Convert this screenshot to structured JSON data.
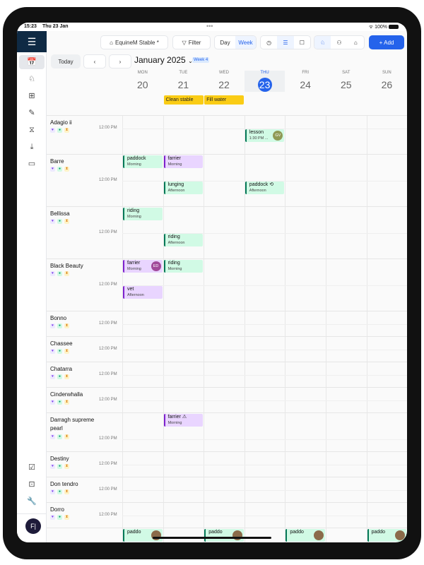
{
  "status": {
    "time": "15:23",
    "date": "Thu 23 Jan",
    "battery": "100%"
  },
  "sidebar": {
    "items": [
      {
        "icon": "calendar-icon",
        "label": "12",
        "active": true
      },
      {
        "icon": "horse-icon"
      },
      {
        "icon": "grid-icon"
      },
      {
        "icon": "syringe-icon"
      },
      {
        "icon": "dna-icon"
      },
      {
        "icon": "download-tray-icon"
      },
      {
        "icon": "wallet-icon"
      }
    ],
    "bottom": [
      {
        "icon": "calendar-check-icon"
      },
      {
        "icon": "contacts-icon"
      },
      {
        "icon": "wrench-icon"
      }
    ],
    "avatar": "F|"
  },
  "toolbar": {
    "stable": "EquineM Stable *",
    "filter": "Filter",
    "day": "Day",
    "week": "Week",
    "add": "+ Add",
    "selected_view": "Week"
  },
  "nav": {
    "today": "Today",
    "prev": "‹",
    "next": "›",
    "month": "January 2025",
    "week_badge": "Week 4"
  },
  "days": [
    {
      "name": "MON",
      "num": "20"
    },
    {
      "name": "TUE",
      "num": "21"
    },
    {
      "name": "WED",
      "num": "22"
    },
    {
      "name": "THU",
      "num": "23",
      "today": true
    },
    {
      "name": "FRI",
      "num": "24"
    },
    {
      "name": "SAT",
      "num": "25"
    },
    {
      "name": "SUN",
      "num": "26"
    }
  ],
  "tasks": [
    {
      "day": 1,
      "label": "Clean stable"
    },
    {
      "day": 2,
      "label": "Fill water"
    }
  ],
  "noon_label": "12:00 PM",
  "colors": {
    "accent": "#2563eb",
    "task": "#facc15",
    "green_event": "#d1fae5",
    "purple_event": "#e9d5ff",
    "sidebar_header": "#0f2a44"
  },
  "horses": [
    {
      "name": "Adagio ii",
      "events": [
        {
          "day": 3,
          "slot": "afternoon",
          "title": "lesson",
          "sub": "1:30 PM ...",
          "color": "green",
          "avatar": "GV",
          "avatar_color": "#8f9a55"
        }
      ]
    },
    {
      "name": "Barre",
      "events": [
        {
          "day": 0,
          "slot": "morning",
          "title": "paddock",
          "sub": "Morning",
          "color": "green"
        },
        {
          "day": 1,
          "slot": "morning",
          "title": "farrier",
          "sub": "Morning",
          "color": "purple"
        },
        {
          "day": 1,
          "slot": "afternoon",
          "title": "lunging",
          "sub": "Afternoon",
          "color": "green"
        },
        {
          "day": 3,
          "slot": "afternoon",
          "title": "paddock ⟲",
          "sub": "Afternoon",
          "color": "green"
        }
      ]
    },
    {
      "name": "Bellissa",
      "events": [
        {
          "day": 0,
          "slot": "morning",
          "title": "riding",
          "sub": "Morning",
          "color": "green"
        },
        {
          "day": 1,
          "slot": "afternoon",
          "title": "riding",
          "sub": "Afternoon",
          "color": "green"
        }
      ]
    },
    {
      "name": "Black Beauty",
      "events": [
        {
          "day": 0,
          "slot": "morning",
          "title": "farrier",
          "sub": "Morning",
          "color": "purple",
          "avatar": "ED",
          "avatar_color": "#a14a9a"
        },
        {
          "day": 1,
          "slot": "morning",
          "title": "riding",
          "sub": "Morning",
          "color": "green"
        },
        {
          "day": 0,
          "slot": "afternoon",
          "title": "vet",
          "sub": "Afternoon",
          "color": "purple"
        }
      ]
    },
    {
      "name": "Bonno",
      "events": []
    },
    {
      "name": "Chassee",
      "events": []
    },
    {
      "name": "Chatarra",
      "events": []
    },
    {
      "name": "Cinderwhalla",
      "events": []
    },
    {
      "name": "Darragh supreme pearl",
      "events": [
        {
          "day": 1,
          "slot": "morning",
          "title": "farrier ⚠",
          "sub": "Morning",
          "color": "purple"
        }
      ]
    },
    {
      "name": "Destiny",
      "events": []
    },
    {
      "name": "Don tendro",
      "events": []
    },
    {
      "name": "Dorro",
      "events": []
    },
    {
      "name": "",
      "events": [
        {
          "day": 0,
          "slot": "morning",
          "title": "paddo",
          "sub": "",
          "color": "green",
          "avatar": " ",
          "avatar_color": "#8b6b4a"
        },
        {
          "day": 2,
          "slot": "morning",
          "title": "paddo",
          "sub": "",
          "color": "green",
          "avatar": " ",
          "avatar_color": "#8b6b4a"
        },
        {
          "day": 4,
          "slot": "morning",
          "title": "paddo",
          "sub": "",
          "color": "green",
          "avatar": " ",
          "avatar_color": "#8b6b4a"
        },
        {
          "day": 6,
          "slot": "morning",
          "title": "paddo",
          "sub": "",
          "color": "green",
          "avatar": " ",
          "avatar_color": "#8b6b4a"
        }
      ]
    }
  ]
}
